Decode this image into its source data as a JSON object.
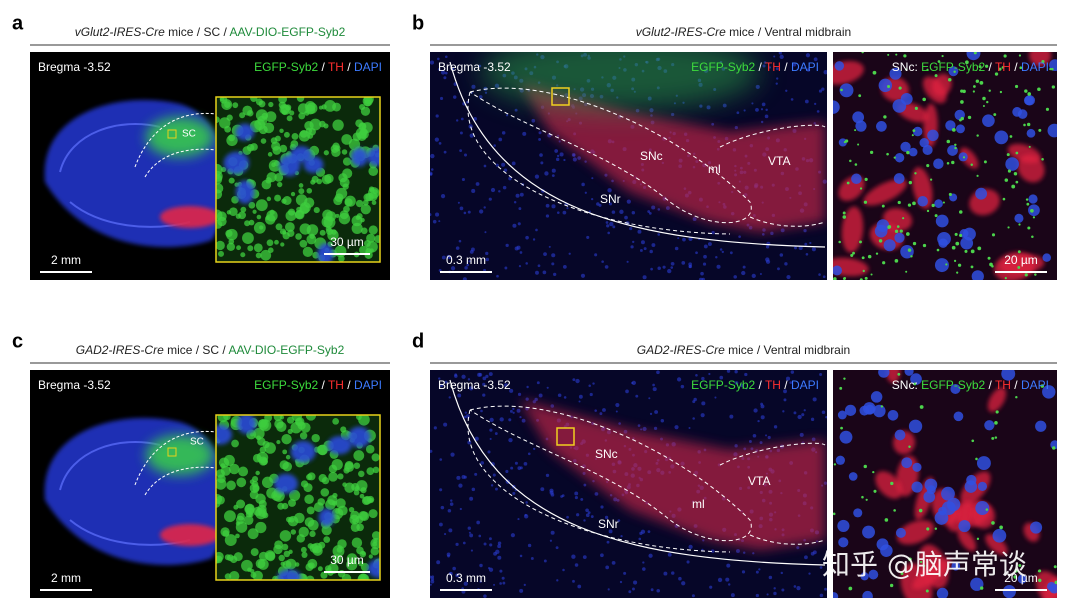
{
  "panels": [
    {
      "letter": "a",
      "header": [
        {
          "text": "vGlut2-IRES-Cre",
          "italic": true
        },
        {
          "text": " mice / SC / "
        },
        {
          "text": "AAV-DIO-EGFP-Syb2",
          "color": "#1e8a3a"
        }
      ],
      "images": [
        {
          "label": "Bregma -3.52",
          "legend": [
            {
              "text": "EGFP-Syb2",
              "color": "#3ddc3d"
            },
            {
              "text": " / ",
              "color": "#ffffff"
            },
            {
              "text": "TH",
              "color": "#ff3030"
            },
            {
              "text": " / ",
              "color": "#ffffff"
            },
            {
              "text": "DAPI",
              "color": "#3d7bff"
            }
          ],
          "regions": [
            "SC"
          ],
          "scale": "2 mm"
        },
        {
          "scale": "30 µm"
        }
      ]
    },
    {
      "letter": "b",
      "header": [
        {
          "text": "vGlut2-IRES-Cre",
          "italic": true
        },
        {
          "text": " mice / Ventral midbrain"
        }
      ],
      "images": [
        {
          "label": "Bregma -3.52",
          "legend": [
            {
              "text": "EGFP-Syb2",
              "color": "#3ddc3d"
            },
            {
              "text": " / ",
              "color": "#ffffff"
            },
            {
              "text": "TH",
              "color": "#ff3030"
            },
            {
              "text": " / ",
              "color": "#ffffff"
            },
            {
              "text": "DAPI",
              "color": "#3d7bff"
            }
          ],
          "regions": [
            "SNc",
            "ml",
            "VTA",
            "SNr"
          ],
          "scale": "0.3 mm"
        },
        {
          "legend": [
            {
              "text": "SNc: ",
              "color": "#ffffff"
            },
            {
              "text": "EGFP-Syb2",
              "color": "#3ddc3d"
            },
            {
              "text": " / ",
              "color": "#ffffff"
            },
            {
              "text": "TH",
              "color": "#ff3030"
            },
            {
              "text": " / ",
              "color": "#ffffff"
            },
            {
              "text": "DAPI",
              "color": "#3d7bff"
            }
          ],
          "scale": "20 µm"
        }
      ]
    },
    {
      "letter": "c",
      "header": [
        {
          "text": "GAD2-IRES-Cre",
          "italic": true
        },
        {
          "text": " mice / SC / "
        },
        {
          "text": "AAV-DIO-EGFP-Syb2",
          "color": "#1e8a3a"
        }
      ],
      "images": [
        {
          "label": "Bregma -3.52",
          "legend": [
            {
              "text": "EGFP-Syb2",
              "color": "#3ddc3d"
            },
            {
              "text": " / ",
              "color": "#ffffff"
            },
            {
              "text": "TH",
              "color": "#ff3030"
            },
            {
              "text": " / ",
              "color": "#ffffff"
            },
            {
              "text": "DAPI",
              "color": "#3d7bff"
            }
          ],
          "regions": [
            "SC"
          ],
          "scale": "2 mm"
        },
        {
          "scale": "30 µm"
        }
      ]
    },
    {
      "letter": "d",
      "header": [
        {
          "text": "GAD2-IRES-Cre",
          "italic": true
        },
        {
          "text": " mice / Ventral midbrain"
        }
      ],
      "images": [
        {
          "label": "Bregma -3.52",
          "legend": [
            {
              "text": "EGFP-Syb2",
              "color": "#3ddc3d"
            },
            {
              "text": " / ",
              "color": "#ffffff"
            },
            {
              "text": "TH",
              "color": "#ff3030"
            },
            {
              "text": " / ",
              "color": "#ffffff"
            },
            {
              "text": "DAPI",
              "color": "#3d7bff"
            }
          ],
          "regions": [
            "SNc",
            "ml",
            "VTA",
            "SNr"
          ],
          "scale": "0.3 mm"
        },
        {
          "legend": [
            {
              "text": "SNc: ",
              "color": "#ffffff"
            },
            {
              "text": "EGFP-Syb2",
              "color": "#3ddc3d"
            },
            {
              "text": " / ",
              "color": "#ffffff"
            },
            {
              "text": "TH",
              "color": "#ff3030"
            },
            {
              "text": " / ",
              "color": "#ffffff"
            },
            {
              "text": "DAPI",
              "color": "#3d7bff"
            }
          ],
          "scale": "20 µm"
        }
      ]
    }
  ],
  "watermark": "知乎 @脑声常谈"
}
